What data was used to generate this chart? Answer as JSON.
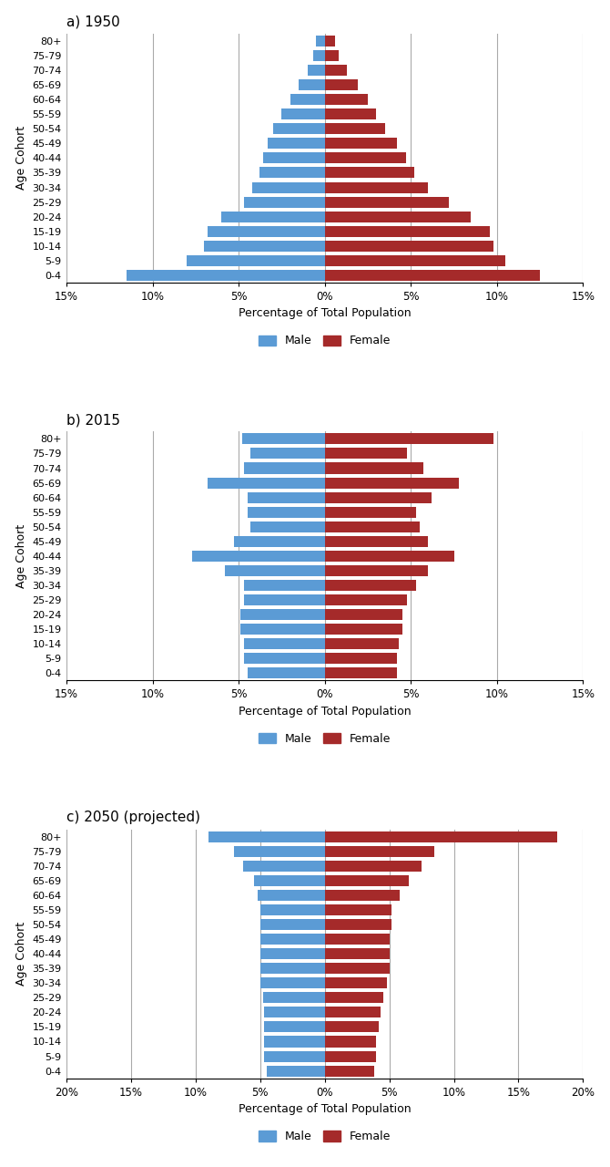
{
  "age_groups": [
    "0-4",
    "5-9",
    "10-14",
    "15-19",
    "20-24",
    "25-29",
    "30-34",
    "35-39",
    "40-44",
    "45-49",
    "50-54",
    "55-59",
    "60-64",
    "65-69",
    "70-74",
    "75-79",
    "80+"
  ],
  "chart1": {
    "title": "a) 1950",
    "male": [
      11.5,
      8.0,
      7.0,
      6.8,
      6.0,
      4.7,
      4.2,
      3.8,
      3.6,
      3.3,
      3.0,
      2.5,
      2.0,
      1.5,
      1.0,
      0.7,
      0.5
    ],
    "female": [
      12.5,
      10.5,
      9.8,
      9.6,
      8.5,
      7.2,
      6.0,
      5.2,
      4.7,
      4.2,
      3.5,
      3.0,
      2.5,
      1.9,
      1.3,
      0.8,
      0.6
    ],
    "xlim": 15,
    "xticks": [
      -15,
      -10,
      -5,
      0,
      5,
      10,
      15
    ],
    "xticklabels": [
      "15%",
      "10%",
      "5%",
      "0%",
      "5%",
      "10%",
      "15%"
    ]
  },
  "chart2": {
    "title": "b) 2015",
    "male": [
      4.5,
      4.7,
      4.7,
      4.9,
      4.9,
      4.7,
      4.7,
      5.8,
      7.7,
      5.3,
      4.3,
      4.5,
      4.5,
      6.8,
      4.7,
      4.3,
      4.8
    ],
    "female": [
      4.2,
      4.2,
      4.3,
      4.5,
      4.5,
      4.8,
      5.3,
      6.0,
      7.5,
      6.0,
      5.5,
      5.3,
      6.2,
      7.8,
      5.7,
      4.8,
      9.8
    ],
    "xlim": 15,
    "xticks": [
      -15,
      -10,
      -5,
      0,
      5,
      10,
      15
    ],
    "xticklabels": [
      "15%",
      "10%",
      "5%",
      "0%",
      "5%",
      "10%",
      "15%"
    ]
  },
  "chart3": {
    "title": "c) 2050 (projected)",
    "male": [
      4.5,
      4.7,
      4.7,
      4.7,
      4.7,
      4.8,
      5.0,
      5.0,
      5.0,
      5.0,
      5.0,
      5.0,
      5.2,
      5.5,
      6.3,
      7.0,
      9.0
    ],
    "female": [
      3.8,
      4.0,
      4.0,
      4.2,
      4.3,
      4.5,
      4.8,
      5.0,
      5.0,
      5.0,
      5.2,
      5.2,
      5.8,
      6.5,
      7.5,
      8.5,
      18.0
    ],
    "xlim": 20,
    "xticks": [
      -20,
      -15,
      -10,
      -5,
      0,
      5,
      10,
      15,
      20
    ],
    "xticklabels": [
      "20%",
      "15%",
      "10%",
      "5%",
      "0%",
      "5%",
      "10%",
      "15%",
      "20%"
    ]
  },
  "male_color": "#5B9BD5",
  "female_color": "#A52A2A",
  "bar_height": 0.75,
  "xlabel": "Percentage of Total Population",
  "ylabel": "Age Cohort",
  "grid_color": "#AAAAAA"
}
